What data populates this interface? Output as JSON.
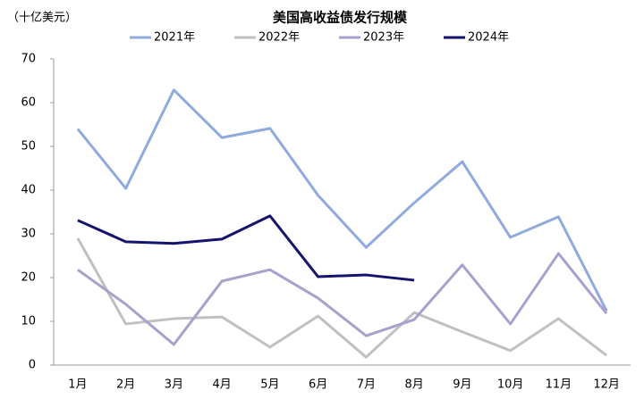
{
  "chart_data": {
    "type": "line",
    "title": "美国高收益债发行规模",
    "y_axis_label": "（十亿美元）",
    "categories": [
      "1月",
      "2月",
      "3月",
      "4月",
      "5月",
      "6月",
      "7月",
      "8月",
      "9月",
      "10月",
      "11月",
      "12月"
    ],
    "series": [
      {
        "name": "2021年",
        "color": "#8faadc",
        "values": [
          54,
          40.4,
          62.9,
          52,
          54.1,
          38.8,
          26.9,
          37.1,
          46.5,
          29.2,
          33.9,
          12.4
        ]
      },
      {
        "name": "2022年",
        "color": "#c0c0c0",
        "values": [
          29,
          9.4,
          10.6,
          11,
          4.1,
          11.2,
          1.8,
          12,
          7.6,
          3.3,
          10.6,
          2.2
        ]
      },
      {
        "name": "2023年",
        "color": "#ab9fcc",
        "values": [
          21.8,
          13.9,
          4.7,
          19.2,
          21.8,
          15.3,
          6.7,
          10.4,
          22.9,
          9.4,
          25.5,
          11.8
        ]
      },
      {
        "name": "2024年",
        "color": "#14146e",
        "values": [
          33.1,
          28.2,
          27.8,
          28.8,
          34.1,
          20.2,
          20.6,
          19.4,
          null,
          null,
          null,
          null
        ]
      }
    ],
    "ylim": [
      0,
      70
    ],
    "yticks": [
      0,
      10,
      20,
      30,
      40,
      50,
      60,
      70
    ],
    "grid": false,
    "legend": "top"
  }
}
